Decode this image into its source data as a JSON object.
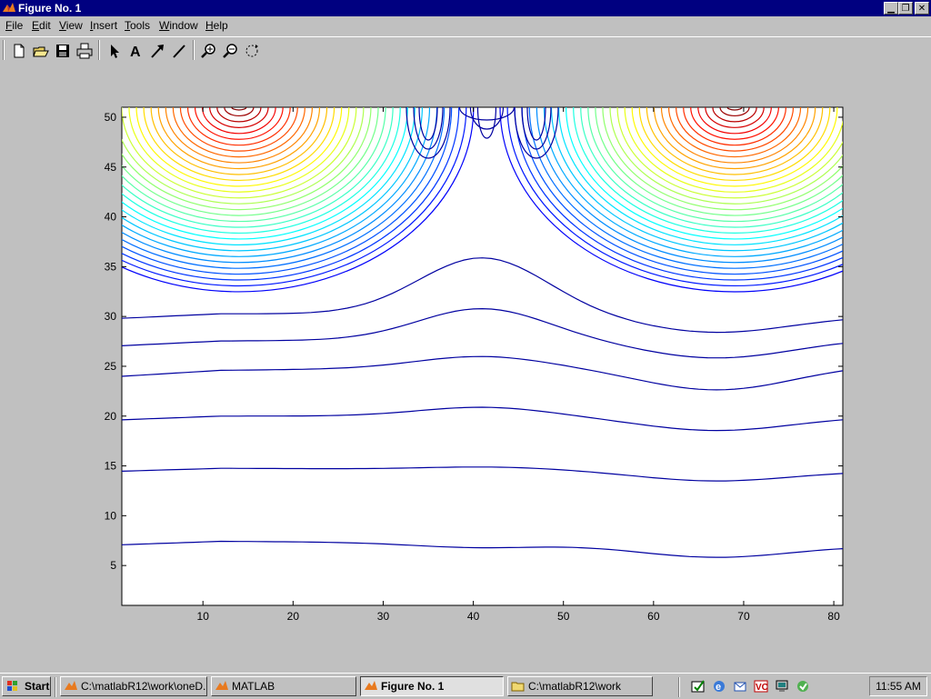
{
  "window": {
    "title": "Figure No. 1",
    "controls": [
      "minimize-icon",
      "restore-icon",
      "close-icon"
    ]
  },
  "menu": {
    "items": [
      {
        "label": "File",
        "accel": "F",
        "rest": "ile"
      },
      {
        "label": "Edit",
        "accel": "E",
        "rest": "dit"
      },
      {
        "label": "View",
        "accel": "V",
        "rest": "iew"
      },
      {
        "label": "Insert",
        "accel": "I",
        "rest": "nsert"
      },
      {
        "label": "Tools",
        "accel": "T",
        "rest": "ools"
      },
      {
        "label": "Window",
        "accel": "W",
        "rest": "indow"
      },
      {
        "label": "Help",
        "accel": "H",
        "rest": "elp"
      }
    ]
  },
  "toolbar": {
    "buttons": [
      "new-figure-icon",
      "open-file-icon",
      "save-icon",
      "print-icon",
      "select-arrow-icon",
      "insert-text-icon",
      "insert-arrow-icon",
      "insert-line-icon",
      "zoom-in-icon",
      "zoom-out-icon",
      "rotate-3d-icon"
    ]
  },
  "chart_data": {
    "type": "contour",
    "title": "",
    "xlabel": "",
    "ylabel": "",
    "xlim": [
      1,
      81
    ],
    "ylim": [
      1,
      51
    ],
    "xticks": [
      10,
      20,
      30,
      40,
      50,
      60,
      70,
      80
    ],
    "yticks": [
      5,
      10,
      15,
      20,
      25,
      30,
      35,
      40,
      45,
      50
    ],
    "colormap": "jet",
    "grid": false,
    "sources": [
      {
        "x": 14,
        "y": 51,
        "level": "max"
      },
      {
        "x": 69,
        "y": 51,
        "level": "max"
      }
    ],
    "lower_contours": [
      {
        "y_left": 7.5,
        "y_center": 6.8,
        "y_min": 5.6,
        "y_right": 7.0
      },
      {
        "y_left": 14.8,
        "y_center": 14.9,
        "y_min": 13.3,
        "y_right": 14.5
      },
      {
        "y_left": 20.0,
        "y_center": 20.9,
        "y_min": 18.3,
        "y_right": 20.0
      },
      {
        "y_left": 24.5,
        "y_center": 26.0,
        "y_min": 22.2,
        "y_right": 25.2
      },
      {
        "y_left": 27.5,
        "y_center": 30.8,
        "y_min": 25.5,
        "y_right": 27.8
      },
      {
        "y_left": 30.3,
        "y_center": 35.9,
        "y_min": 28.1,
        "y_right": 30.1
      }
    ]
  },
  "taskbar": {
    "start_label": "Start",
    "tasks": [
      {
        "label": "C:\\matlabR12\\work\\oneD...",
        "icon": "matlab-icon",
        "active": false
      },
      {
        "label": "MATLAB",
        "icon": "matlab-icon",
        "active": false
      },
      {
        "label": "Figure No. 1",
        "icon": "matlab-icon",
        "active": true
      },
      {
        "label": "C:\\matlabR12\\work",
        "icon": "folder-icon",
        "active": false
      }
    ],
    "quick_launch": [
      "show-desktop-icon",
      "internet-explorer-icon",
      "outlook-express-icon",
      "visual-cafe-icon",
      "network-icon"
    ],
    "clock": "11:55 AM"
  }
}
